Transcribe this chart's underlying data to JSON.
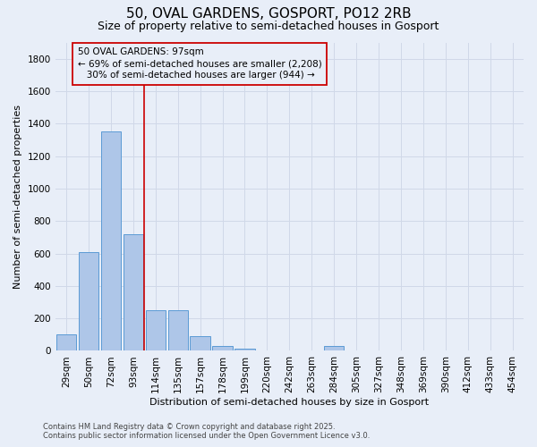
{
  "title": "50, OVAL GARDENS, GOSPORT, PO12 2RB",
  "subtitle": "Size of property relative to semi-detached houses in Gosport",
  "xlabel": "Distribution of semi-detached houses by size in Gosport",
  "ylabel": "Number of semi-detached properties",
  "categories": [
    "29sqm",
    "50sqm",
    "72sqm",
    "93sqm",
    "114sqm",
    "135sqm",
    "157sqm",
    "178sqm",
    "199sqm",
    "220sqm",
    "242sqm",
    "263sqm",
    "284sqm",
    "305sqm",
    "327sqm",
    "348sqm",
    "369sqm",
    "390sqm",
    "412sqm",
    "433sqm",
    "454sqm"
  ],
  "values": [
    100,
    610,
    1350,
    720,
    250,
    250,
    90,
    30,
    15,
    5,
    0,
    0,
    30,
    0,
    0,
    0,
    0,
    0,
    0,
    0,
    0
  ],
  "bar_color": "#aec6e8",
  "bar_edge_color": "#5b9bd5",
  "grid_color": "#d0d8e8",
  "background_color": "#e8eef8",
  "vline_color": "#cc0000",
  "vline_x": 3.5,
  "annotation_line1": "50 OVAL GARDENS: 97sqm",
  "annotation_line2": "← 69% of semi-detached houses are smaller (2,208)",
  "annotation_line3": "   30% of semi-detached houses are larger (944) →",
  "annotation_box_color": "#cc0000",
  "ylim": [
    0,
    1900
  ],
  "yticks": [
    0,
    200,
    400,
    600,
    800,
    1000,
    1200,
    1400,
    1600,
    1800
  ],
  "footer_line1": "Contains HM Land Registry data © Crown copyright and database right 2025.",
  "footer_line2": "Contains public sector information licensed under the Open Government Licence v3.0.",
  "title_fontsize": 11,
  "subtitle_fontsize": 9,
  "axis_label_fontsize": 8,
  "tick_fontsize": 7.5,
  "annotation_fontsize": 7.5,
  "footer_fontsize": 6
}
